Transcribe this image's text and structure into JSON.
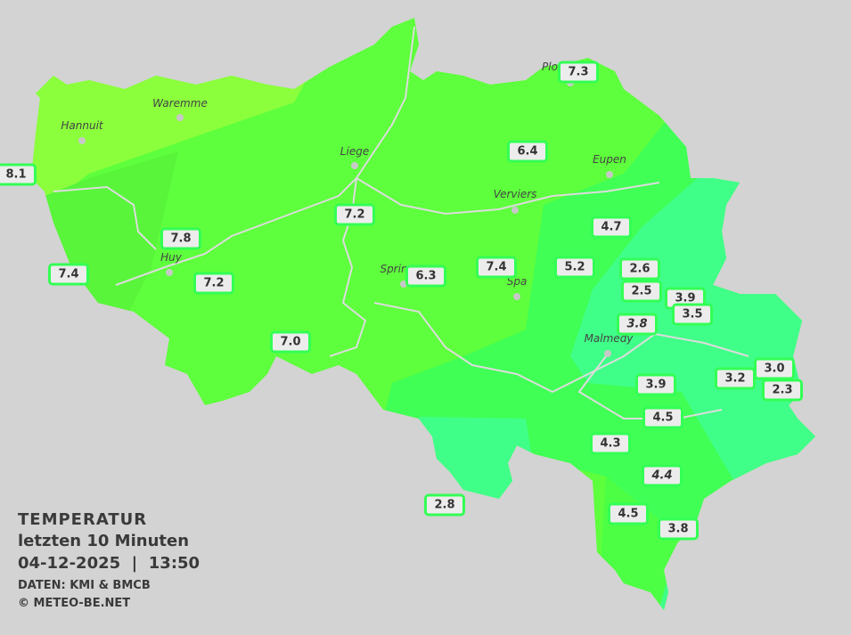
{
  "legend": {
    "title": "TEMPERATUR",
    "period": "letzten 10 Minuten",
    "datetime": "04-12-2025  |  13:50",
    "source": "DATEN: KMI & BMCB",
    "copyright": "© METEO-BE.NET"
  },
  "colors": {
    "background": "#d3d3d3",
    "zone_warmest": "#8cff3c",
    "zone_warm": "#5eff3c",
    "zone_mild": "#40ff55",
    "zone_cool": "#40ff88",
    "label_border": "#33ff55"
  },
  "cities": [
    {
      "name": "Hannuit"
    },
    {
      "name": "Waremme"
    },
    {
      "name": "Liege"
    },
    {
      "name": "Huy"
    },
    {
      "name": "Verviers"
    },
    {
      "name": "Eupen"
    },
    {
      "name": "Sprin"
    },
    {
      "name": "Spa"
    },
    {
      "name": "Malmedy"
    },
    {
      "name": "Plo"
    }
  ],
  "stations": [
    {
      "value": "8.1"
    },
    {
      "value": "7.8"
    },
    {
      "value": "7.4"
    },
    {
      "value": "7.2"
    },
    {
      "value": "7.2"
    },
    {
      "value": "7.0"
    },
    {
      "value": "6.3"
    },
    {
      "value": "7.4"
    },
    {
      "value": "6.4"
    },
    {
      "value": "7.3"
    },
    {
      "value": "4.7"
    },
    {
      "value": "5.2"
    },
    {
      "value": "2.6"
    },
    {
      "value": "2.5"
    },
    {
      "value": "3.9"
    },
    {
      "value": "3.5"
    },
    {
      "value": "3.8",
      "italic": true
    },
    {
      "value": "3.9"
    },
    {
      "value": "3.2"
    },
    {
      "value": "3.0"
    },
    {
      "value": "2.3"
    },
    {
      "value": "4.5"
    },
    {
      "value": "4.3"
    },
    {
      "value": "4.4",
      "italic": true
    },
    {
      "value": "4.5"
    },
    {
      "value": "3.8"
    },
    {
      "value": "2.8"
    }
  ]
}
